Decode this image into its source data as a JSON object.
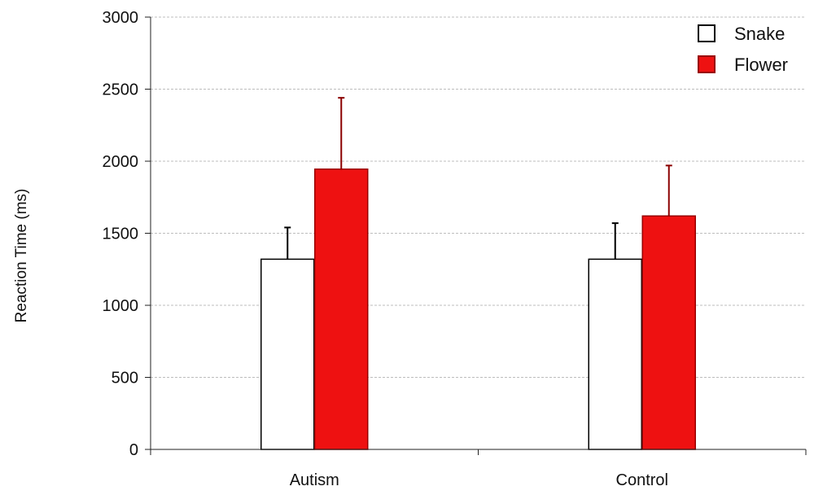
{
  "chart_data": {
    "type": "bar",
    "title": "",
    "xlabel": "",
    "ylabel": "Reaction Time   (ms)",
    "ylim": [
      0,
      3000
    ],
    "yticks": [
      0,
      500,
      1000,
      1500,
      2000,
      2500,
      3000
    ],
    "categories": [
      "Autism",
      "Control"
    ],
    "grid": true,
    "legend_position": "top-right",
    "error_bars": "upper only",
    "series": [
      {
        "name": "Snake",
        "values": [
          1320,
          1320
        ],
        "errors": [
          220,
          250
        ],
        "fill": "#ffffff",
        "stroke": "#000000",
        "error_color": "#000000"
      },
      {
        "name": "Flower",
        "values": [
          1945,
          1620
        ],
        "errors": [
          495,
          350
        ],
        "fill": "#ee1111",
        "stroke": "#990000",
        "error_color": "#8b0000"
      }
    ]
  }
}
